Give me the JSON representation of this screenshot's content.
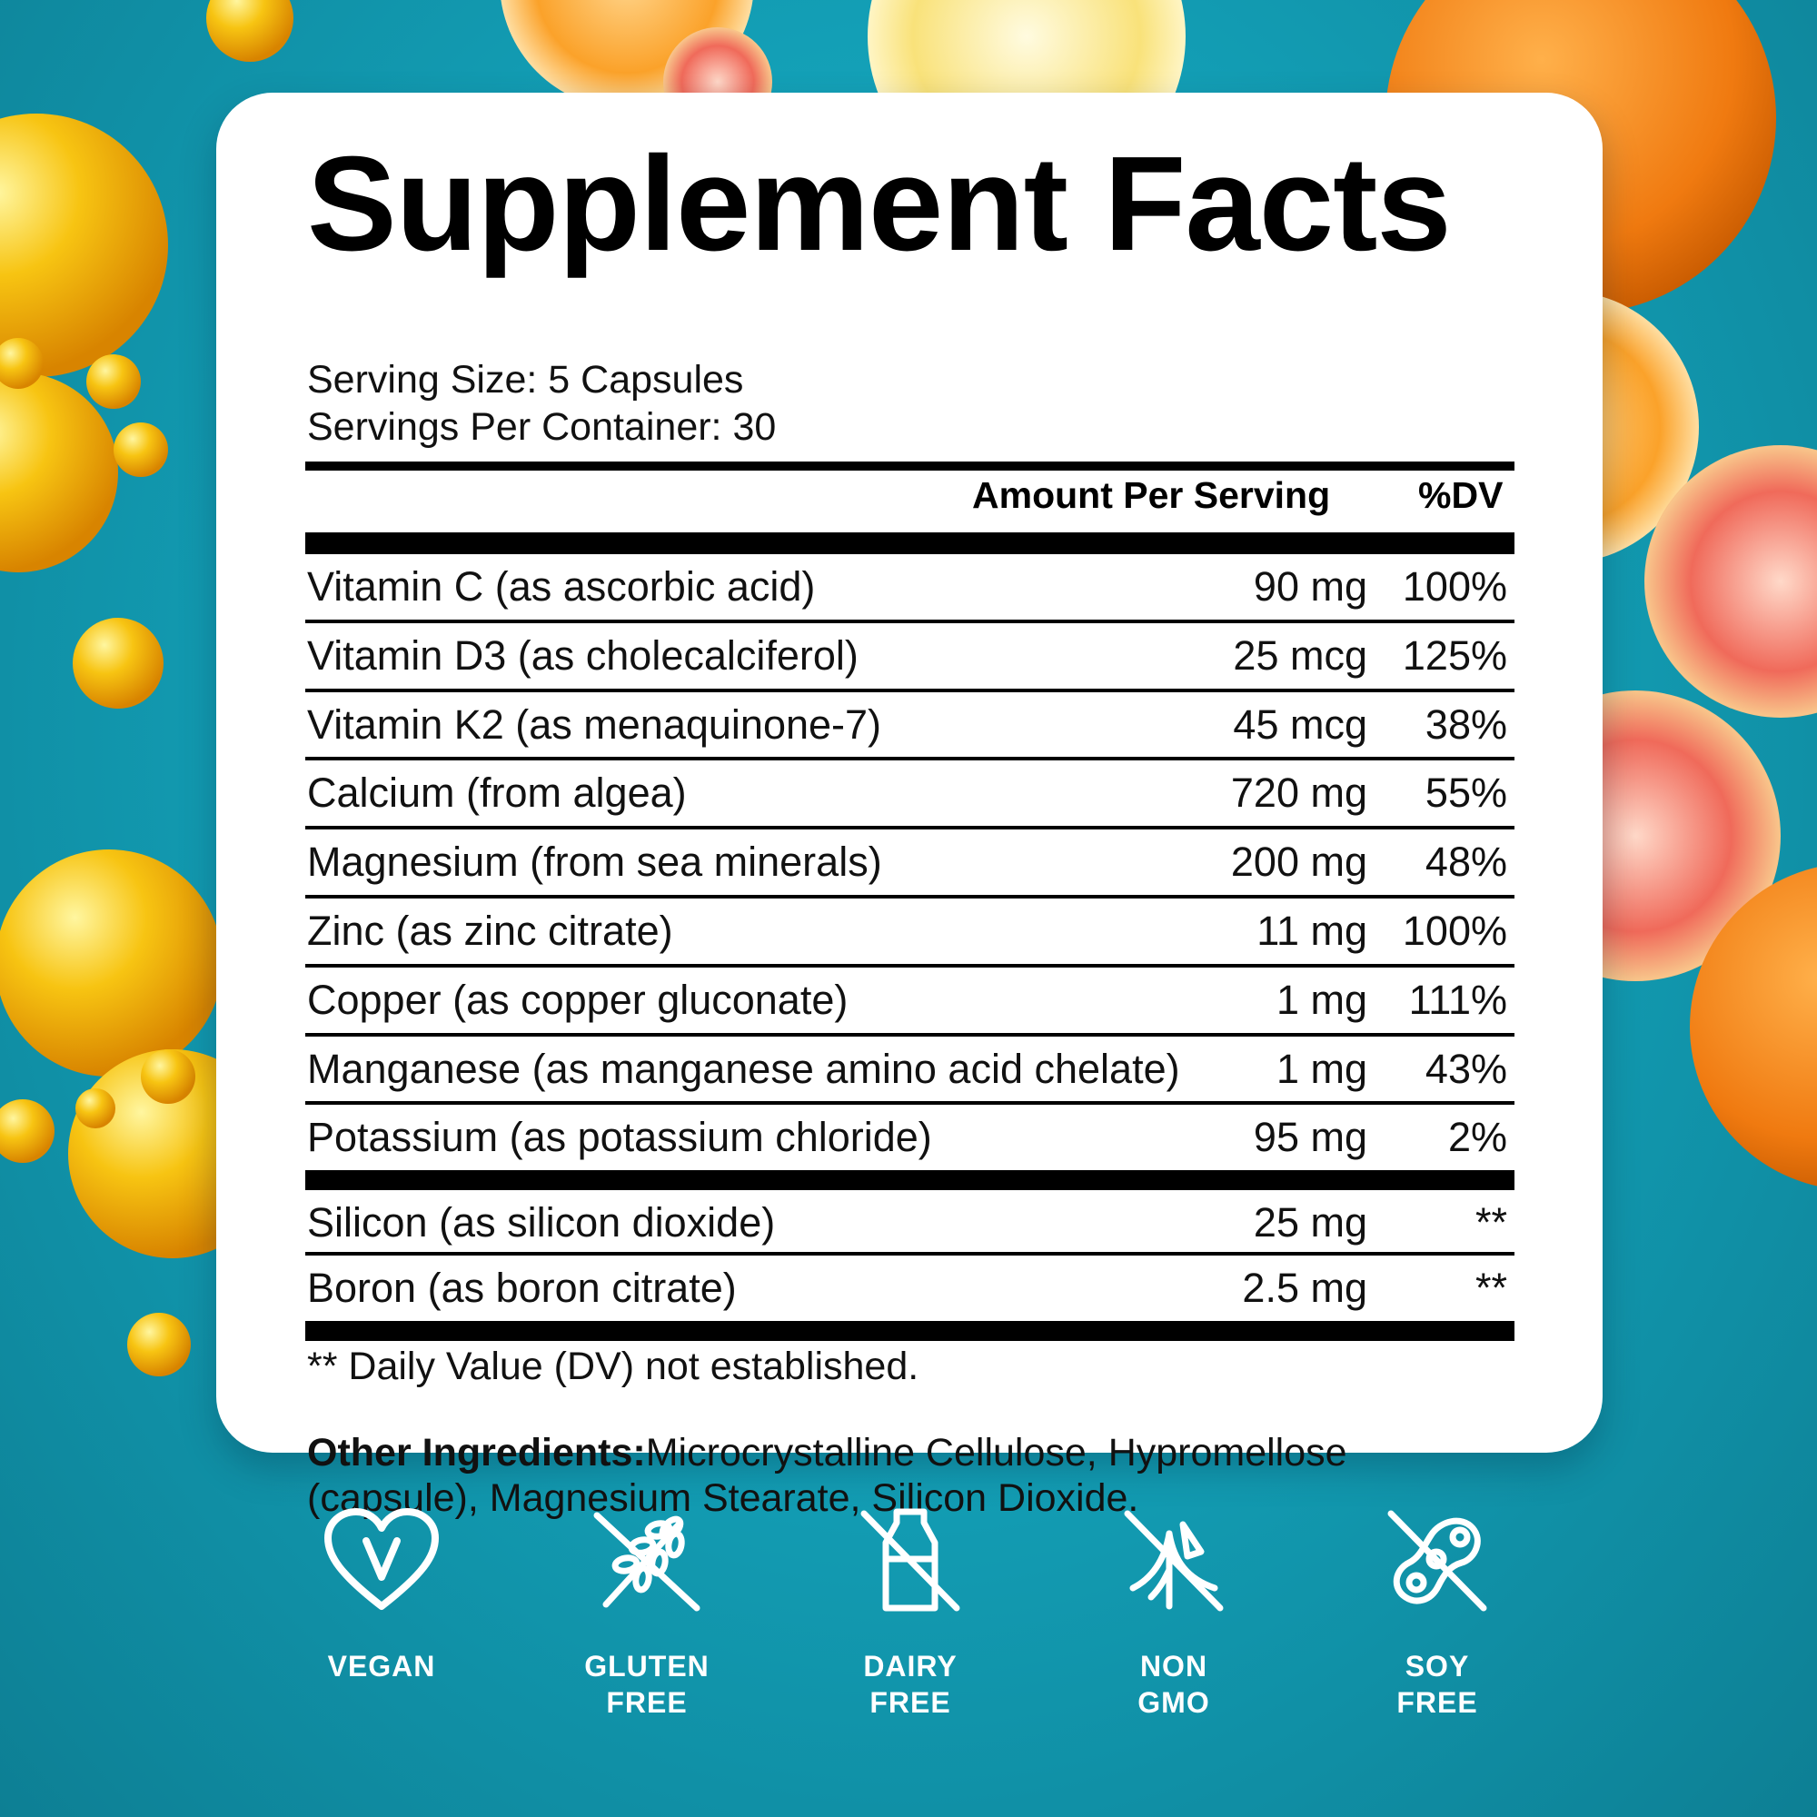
{
  "title": "Supplement Facts",
  "serving_size": "Serving Size: 5 Capsules",
  "servings_per_container": "Servings Per Container: 30",
  "columns": {
    "amount": "Amount Per Serving",
    "dv": "%DV"
  },
  "nutrients": [
    {
      "name": "Vitamin C (as ascorbic acid)",
      "amount": "90 mg",
      "dv": "100%"
    },
    {
      "name": "Vitamin D3 (as cholecalciferol)",
      "amount": "25 mcg",
      "dv": "125%"
    },
    {
      "name": "Vitamin K2 (as menaquinone-7)",
      "amount": "45 mcg",
      "dv": "38%"
    },
    {
      "name": "Calcium (from algea)",
      "amount": "720 mg",
      "dv": "55%"
    },
    {
      "name": "Magnesium (from sea minerals)",
      "amount": "200 mg",
      "dv": "48%"
    },
    {
      "name": "Zinc (as zinc citrate)",
      "amount": "11 mg",
      "dv": "100%"
    },
    {
      "name": "Copper (as copper gluconate)",
      "amount": "1 mg",
      "dv": "111%"
    },
    {
      "name": "Manganese (as manganese amino acid chelate)",
      "amount": "1 mg",
      "dv": "43%"
    },
    {
      "name": "Potassium (as potassium chloride)",
      "amount": "95 mg",
      "dv": "2%"
    }
  ],
  "other_nutrients": [
    {
      "name": "Silicon (as silicon dioxide)",
      "amount": "25 mg",
      "dv": "**"
    },
    {
      "name": "Boron (as boron citrate)",
      "amount": "2.5 mg",
      "dv": "**"
    }
  ],
  "footnote": "** Daily Value (DV) not established.",
  "other_ingredients": {
    "label": "Other Ingredients:",
    "text": "Microcrystalline Cellulose, Hypromellose (capsule), Magnesium Stearate, Silicon Dioxide."
  },
  "badges": [
    {
      "icon": "heart-v-icon",
      "line1": "VEGAN",
      "line2": ""
    },
    {
      "icon": "no-wheat-icon",
      "line1": "GLUTEN",
      "line2": "FREE"
    },
    {
      "icon": "no-milk-icon",
      "line1": "DAIRY",
      "line2": "FREE"
    },
    {
      "icon": "no-gmo-icon",
      "line1": "NON",
      "line2": "GMO"
    },
    {
      "icon": "no-soy-icon",
      "line1": "SOY",
      "line2": "FREE"
    }
  ],
  "colors": {
    "background": "#139fb6",
    "card": "#ffffff",
    "text": "#000000",
    "badge_text": "#ffffff"
  }
}
